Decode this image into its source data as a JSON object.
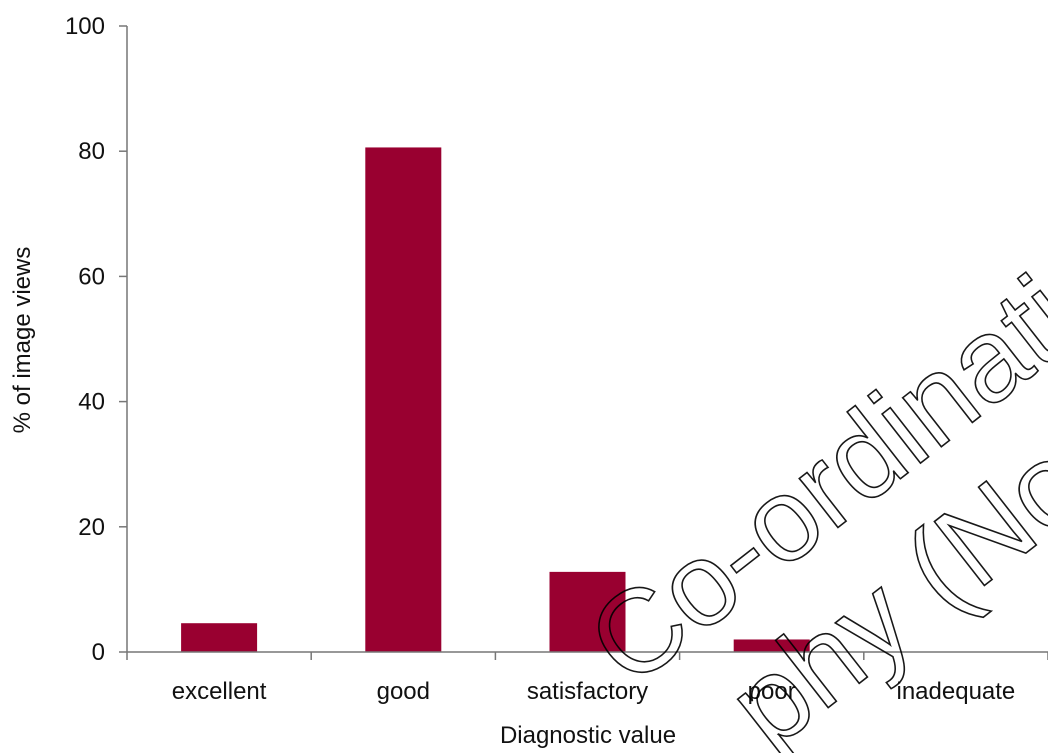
{
  "colors": {
    "bar": "#990030",
    "axis": "#777777",
    "text": "#111111"
  },
  "chart_data": {
    "type": "bar",
    "categories": [
      "excellent",
      "good",
      "satisfactory",
      "poor",
      "inadequate"
    ],
    "values": [
      4.6,
      80.6,
      12.8,
      2.0,
      0.0
    ],
    "xlabel": "Diagnostic value",
    "ylabel": "% of image views",
    "ylim": [
      0,
      100
    ],
    "yticks": [
      0,
      20,
      40,
      60,
      80,
      100
    ],
    "grid": false,
    "legend": "none"
  },
  "watermark": {
    "line1": "Co-ordinatin",
    "line2": "phy (No"
  }
}
